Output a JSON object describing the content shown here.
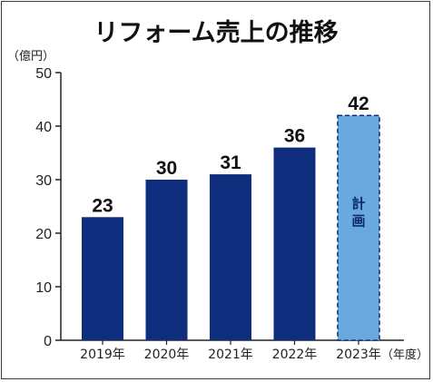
{
  "chart_data": {
    "type": "bar",
    "title": "リフォーム売上の推移",
    "ylabel": "（億円）",
    "xlabel": "（年度）",
    "ylim": [
      0,
      50
    ],
    "yticks": [
      0,
      10,
      20,
      30,
      40,
      50
    ],
    "grid": false,
    "categories": [
      "2019年",
      "2020年",
      "2021年",
      "2022年",
      "2023年"
    ],
    "values": [
      23,
      30,
      31,
      36,
      42
    ],
    "value_labels": [
      "23",
      "30",
      "31",
      "36",
      "42"
    ],
    "planned": [
      false,
      false,
      false,
      false,
      true
    ],
    "planned_note": "計画",
    "colors": {
      "actual": "#0f2d7d",
      "planned": "#6aa8e0",
      "planned_border": "#0f2d7d"
    }
  }
}
